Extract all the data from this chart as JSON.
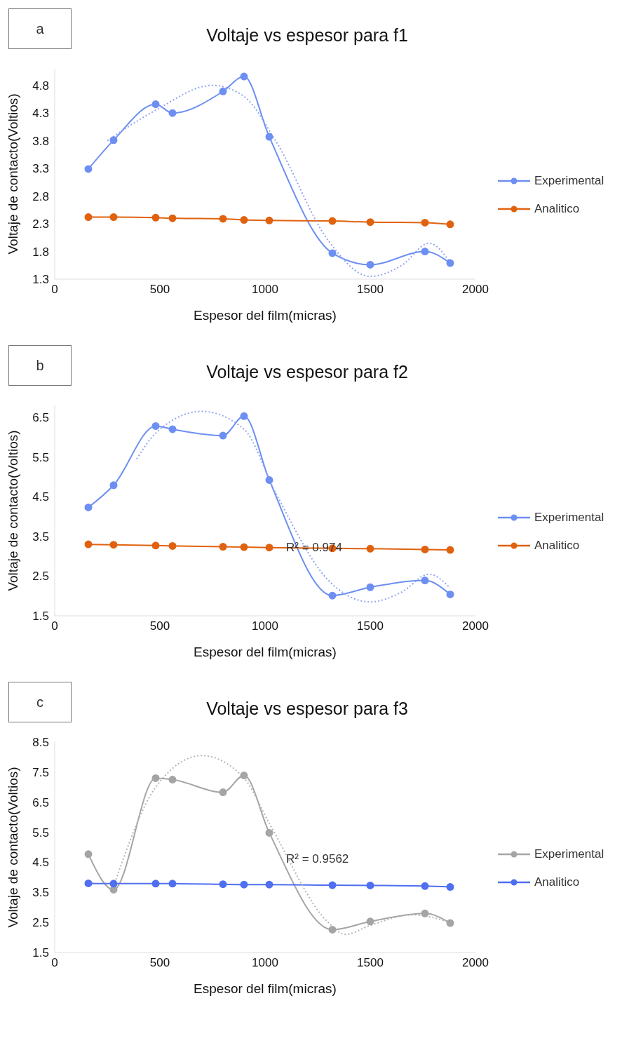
{
  "chart_data": [
    {
      "type": "line",
      "title": "Voltaje vs espesor para f1",
      "xlabel": "Espesor del film(micras)",
      "ylabel": "Voltaje de contacto(Voltios)",
      "annotations": [
        "a"
      ],
      "xlim": [
        0,
        2000
      ],
      "xticks": [
        0,
        500,
        1000,
        1500,
        2000
      ],
      "ylim": [
        1.3,
        5.1
      ],
      "yticks": [
        1.3,
        1.8,
        2.3,
        2.8,
        3.3,
        3.8,
        4.3,
        4.8
      ],
      "legend": "right",
      "marker": "circle",
      "line_style": "solid",
      "x": [
        160,
        280,
        480,
        560,
        800,
        900,
        1020,
        1320,
        1500,
        1760,
        1880
      ],
      "series": [
        {
          "name": "Experimental",
          "color": "#6d8ff2",
          "values": [
            3.29,
            3.81,
            4.46,
            4.3,
            4.69,
            4.96,
            3.87,
            1.77,
            1.56,
            1.8,
            1.59
          ]
        },
        {
          "name": "Analitico",
          "color": "#e0620f",
          "values": [
            2.42,
            2.42,
            2.41,
            2.4,
            2.39,
            2.37,
            2.36,
            2.35,
            2.33,
            2.32,
            2.29
          ]
        },
        {
          "type": "line",
          "color": "#8fa5f0",
          "marker": "none",
          "line_style": "dotted",
          "x": [
            250,
            480,
            750,
            900,
            1050,
            1300,
            1500,
            1650,
            1780,
            1880
          ],
          "values": [
            3.8,
            4.35,
            4.8,
            4.6,
            3.8,
            2.0,
            1.35,
            1.55,
            1.95,
            1.6
          ]
        }
      ]
    },
    {
      "type": "line",
      "title": "Voltaje vs espesor para f2",
      "xlabel": "Espesor del film(micras)",
      "ylabel": "Voltaje de contacto(Voltios)",
      "annotations": [
        "b",
        {
          "text": "R² = 0.974",
          "x": 1100,
          "y": 3.17
        }
      ],
      "xlim": [
        0,
        2000
      ],
      "xticks": [
        0,
        500,
        1000,
        1500,
        2000
      ],
      "ylim": [
        1.5,
        6.8
      ],
      "yticks": [
        1.5,
        2.5,
        3.5,
        4.5,
        5.5,
        6.5
      ],
      "legend": "right",
      "marker": "circle",
      "line_style": "solid",
      "x": [
        160,
        280,
        480,
        560,
        800,
        900,
        1020,
        1320,
        1500,
        1760,
        1880
      ],
      "series": [
        {
          "name": "Experimental",
          "color": "#6d8ff2",
          "values": [
            4.23,
            4.79,
            6.28,
            6.2,
            6.04,
            6.53,
            4.92,
            2.01,
            2.22,
            2.39,
            2.04
          ]
        },
        {
          "name": "Analitico",
          "color": "#e0620f",
          "values": [
            3.3,
            3.29,
            3.27,
            3.26,
            3.24,
            3.23,
            3.22,
            3.2,
            3.19,
            3.17,
            3.16
          ]
        },
        {
          "type": "line",
          "color": "#8fa5f0",
          "marker": "none",
          "line_style": "dotted",
          "x": [
            390,
            480,
            700,
            900,
            1050,
            1300,
            1500,
            1650,
            1780,
            1880
          ],
          "values": [
            5.45,
            6.1,
            6.65,
            6.2,
            4.6,
            2.4,
            1.85,
            2.1,
            2.55,
            2.2
          ]
        }
      ]
    },
    {
      "type": "line",
      "title": "Voltaje vs espesor para f3",
      "xlabel": "Espesor del film(micras)",
      "ylabel": "Voltaje de contacto(Voltios)",
      "annotations": [
        "c",
        {
          "text": "R² = 0.9562",
          "x": 1100,
          "y": 4.55
        }
      ],
      "xlim": [
        0,
        2000
      ],
      "xticks": [
        0,
        500,
        1000,
        1500,
        2000
      ],
      "ylim": [
        1.5,
        8.5
      ],
      "yticks": [
        1.5,
        2.5,
        3.5,
        4.5,
        5.5,
        6.5,
        7.5,
        8.5
      ],
      "legend": "right",
      "marker": "circle",
      "line_style": "solid",
      "x": [
        160,
        280,
        480,
        560,
        800,
        900,
        1020,
        1320,
        1500,
        1760,
        1880
      ],
      "series": [
        {
          "name": "Experimental",
          "color": "#a5a5a5",
          "values": [
            4.77,
            3.59,
            7.3,
            7.25,
            6.83,
            7.39,
            5.48,
            2.26,
            2.53,
            2.8,
            2.48
          ]
        },
        {
          "name": "Analitico",
          "color": "#4f6ff0",
          "values": [
            3.8,
            3.79,
            3.79,
            3.79,
            3.77,
            3.76,
            3.76,
            3.74,
            3.73,
            3.71,
            3.68
          ]
        },
        {
          "type": "line",
          "color": "#b5b5b5",
          "marker": "none",
          "line_style": "dotted",
          "x": [
            280,
            480,
            700,
            900,
            1020,
            1300,
            1380,
            1500,
            1700,
            1880
          ],
          "values": [
            3.7,
            7.0,
            8.05,
            7.3,
            5.8,
            2.5,
            2.1,
            2.4,
            2.75,
            2.5
          ]
        }
      ]
    }
  ]
}
